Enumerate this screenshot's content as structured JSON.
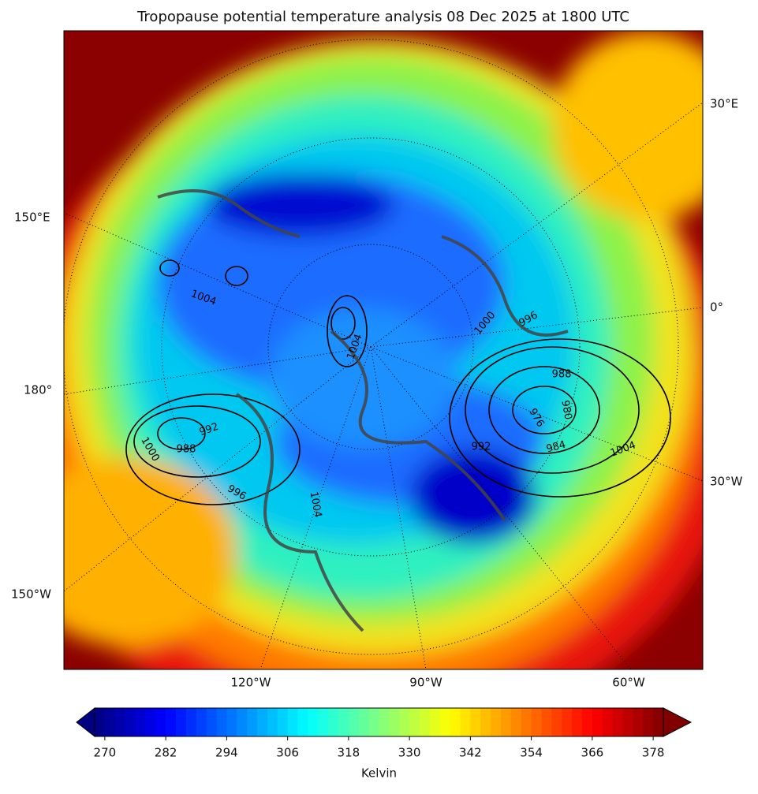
{
  "title": "Tropopause potential temperature analysis 08 Dec 2025 at 1800 UTC",
  "map": {
    "lon_labels": [
      "30°E",
      "150°E",
      "0°",
      "180°",
      "30°W",
      "150°W",
      "120°W",
      "90°W",
      "60°W"
    ],
    "contour_labels": [
      1004,
      1004,
      1000,
      996,
      988,
      980,
      976,
      984,
      1004,
      992,
      992,
      988,
      1004,
      996,
      1000
    ]
  },
  "colorbar": {
    "label": "Kelvin",
    "colormap": "jet",
    "lim": [
      268,
      380
    ],
    "levels_step": 2,
    "ticks": [
      270,
      282,
      294,
      306,
      318,
      330,
      342,
      354,
      366,
      378
    ]
  }
}
